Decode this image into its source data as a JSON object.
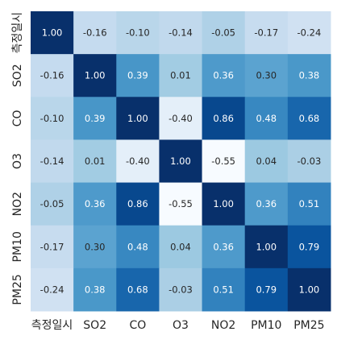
{
  "chart_data": {
    "type": "heatmap",
    "variables": [
      "측정일시",
      "SO2",
      "CO",
      "O3",
      "NO2",
      "PM10",
      "PM25"
    ],
    "matrix": [
      [
        1.0,
        -0.16,
        -0.1,
        -0.14,
        -0.05,
        -0.17,
        -0.24
      ],
      [
        -0.16,
        1.0,
        0.39,
        0.01,
        0.36,
        0.3,
        0.38
      ],
      [
        -0.1,
        0.39,
        1.0,
        -0.4,
        0.86,
        0.48,
        0.68
      ],
      [
        -0.14,
        0.01,
        -0.4,
        1.0,
        -0.55,
        0.04,
        -0.03
      ],
      [
        -0.05,
        0.36,
        0.86,
        -0.55,
        1.0,
        0.36,
        0.51
      ],
      [
        -0.17,
        0.3,
        0.48,
        0.04,
        0.36,
        1.0,
        0.79
      ],
      [
        -0.24,
        0.38,
        0.68,
        -0.03,
        0.51,
        0.79,
        1.0
      ]
    ],
    "value_format": "2 decimals",
    "colormap": "Blues",
    "colorbar": false,
    "grid": false,
    "title": "",
    "xlabel": "",
    "ylabel": ""
  }
}
